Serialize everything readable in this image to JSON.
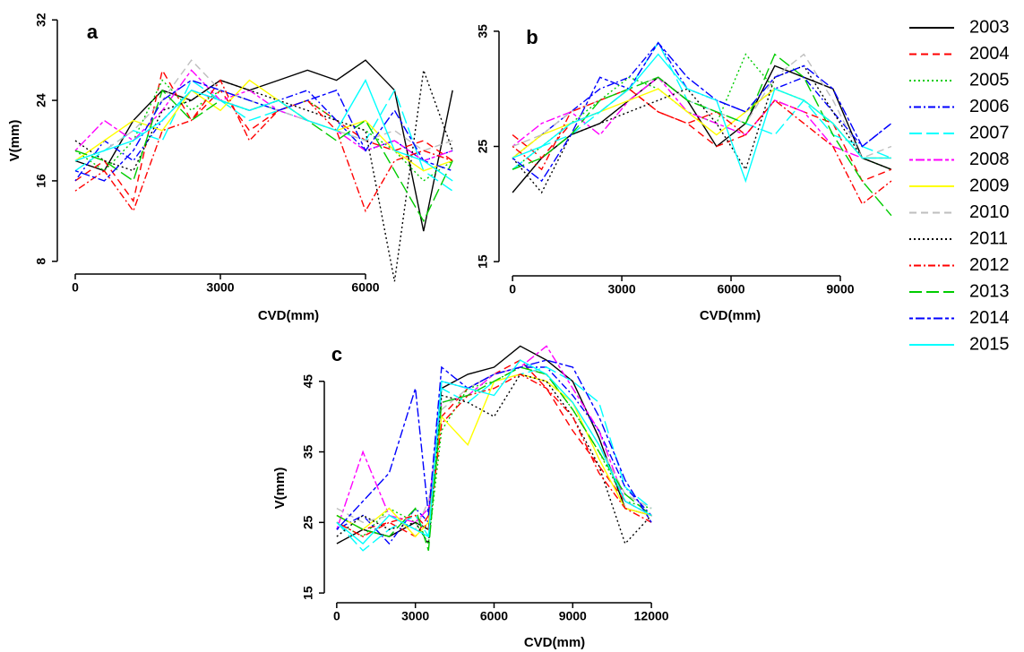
{
  "legend": [
    {
      "name": "2003",
      "color": "#000000",
      "dash": "solid"
    },
    {
      "name": "2004",
      "color": "#ff0000",
      "dash": "dashed"
    },
    {
      "name": "2005",
      "color": "#00cc00",
      "dash": "dotted"
    },
    {
      "name": "2006",
      "color": "#0000ff",
      "dash": "dotdash"
    },
    {
      "name": "2007",
      "color": "#00ffff",
      "dash": "longdash"
    },
    {
      "name": "2008",
      "color": "#ff00ff",
      "dash": "twodash"
    },
    {
      "name": "2009",
      "color": "#ffff00",
      "dash": "solid"
    },
    {
      "name": "2010",
      "color": "#bebebe",
      "dash": "dashed"
    },
    {
      "name": "2011",
      "color": "#000000",
      "dash": "dotted"
    },
    {
      "name": "2012",
      "color": "#ff0000",
      "dash": "dotdash"
    },
    {
      "name": "2013",
      "color": "#00cc00",
      "dash": "longdash"
    },
    {
      "name": "2014",
      "color": "#0000ff",
      "dash": "twodash"
    },
    {
      "name": "2015",
      "color": "#00ffff",
      "dash": "solid"
    }
  ],
  "chart_data": [
    {
      "type": "line",
      "label": "a",
      "xlabel": "CVD(mm)",
      "ylabel": "V(mm)",
      "x": [
        0,
        600,
        1200,
        1800,
        2400,
        3000,
        3600,
        4200,
        4800,
        5400,
        6000,
        6600,
        7200,
        7800
      ],
      "xlim": [
        -100,
        7900
      ],
      "ylim": [
        7,
        33
      ],
      "xticks": [
        0,
        3000,
        6000
      ],
      "yticks": [
        8,
        16,
        24,
        32
      ],
      "series": [
        {
          "values": [
            18,
            17,
            22,
            25,
            24,
            26,
            25,
            26,
            27,
            26,
            28,
            25,
            11,
            25
          ]
        },
        {
          "values": [
            16,
            18,
            14,
            27,
            22,
            25,
            21,
            23,
            24,
            22,
            20,
            19,
            20,
            18
          ]
        },
        {
          "values": [
            19,
            17,
            20,
            26,
            23,
            25,
            24,
            23,
            24,
            22,
            21,
            19,
            16,
            18
          ]
        },
        {
          "values": [
            16,
            20,
            18,
            22,
            25,
            24,
            23,
            24,
            25,
            22,
            19,
            20,
            18,
            19
          ]
        },
        {
          "values": [
            17,
            19,
            21,
            20,
            26,
            24,
            22,
            23,
            22,
            21,
            20,
            25,
            17,
            15
          ]
        },
        {
          "values": [
            19,
            22,
            20,
            23,
            27,
            24,
            25,
            23,
            22,
            21,
            19,
            20,
            18,
            19
          ]
        },
        {
          "values": [
            18,
            20,
            22,
            21,
            25,
            23,
            26,
            24,
            22,
            21,
            22,
            19,
            17,
            18
          ]
        },
        {
          "values": [
            18,
            19,
            21,
            24,
            28,
            25,
            24,
            23,
            22,
            21,
            20,
            21,
            19,
            20
          ]
        },
        {
          "values": [
            20,
            18,
            17,
            23,
            24,
            26,
            25,
            24,
            23,
            22,
            21,
            6,
            27,
            19
          ]
        },
        {
          "values": [
            15,
            17,
            13,
            21,
            22,
            26,
            20,
            23,
            24,
            21,
            13,
            18,
            19,
            18
          ]
        },
        {
          "values": [
            19,
            18,
            16,
            25,
            22,
            24,
            23,
            24,
            22,
            20,
            22,
            17,
            12,
            18
          ]
        },
        {
          "values": [
            17,
            16,
            19,
            24,
            26,
            25,
            24,
            23,
            24,
            25,
            19,
            23,
            18,
            17
          ]
        },
        {
          "values": [
            18,
            19,
            20,
            22,
            25,
            24,
            23,
            24,
            22,
            21,
            26,
            19,
            18,
            16
          ]
        }
      ]
    },
    {
      "type": "line",
      "label": "b",
      "xlabel": "CVD(mm)",
      "x": [
        0,
        800,
        1600,
        2400,
        3200,
        4000,
        4800,
        5600,
        6400,
        7200,
        8000,
        8800,
        9600,
        10400
      ],
      "xlim": [
        -200,
        10600
      ],
      "ylim": [
        14,
        36
      ],
      "xticks": [
        0,
        3000,
        6000,
        9000
      ],
      "yticks": [
        15,
        25,
        35
      ],
      "series": [
        {
          "values": [
            21,
            24,
            26,
            27,
            29,
            31,
            29,
            25,
            27,
            32,
            31,
            30,
            24,
            23
          ]
        },
        {
          "values": [
            26,
            24,
            27,
            28,
            30,
            28,
            27,
            25,
            26,
            29,
            28,
            27,
            22,
            23
          ]
        },
        {
          "values": [
            23,
            25,
            27,
            29,
            31,
            30,
            28,
            27,
            33,
            30,
            29,
            27,
            24,
            23
          ]
        },
        {
          "values": [
            24,
            26,
            28,
            30,
            31,
            34,
            30,
            29,
            28,
            30,
            31,
            28,
            25,
            27
          ]
        },
        {
          "values": [
            23,
            25,
            26,
            28,
            30,
            34,
            29,
            28,
            27,
            26,
            29,
            26,
            25,
            24
          ]
        },
        {
          "values": [
            25,
            27,
            28,
            26,
            29,
            31,
            28,
            27,
            26,
            29,
            28,
            25,
            24,
            24
          ]
        },
        {
          "values": [
            24,
            26,
            27,
            28,
            29,
            30,
            28,
            26,
            28,
            30,
            29,
            27,
            24,
            24
          ]
        },
        {
          "values": [
            25,
            26,
            28,
            29,
            30,
            31,
            29,
            28,
            27,
            31,
            33,
            29,
            24,
            25
          ]
        },
        {
          "values": [
            24,
            21,
            26,
            27,
            28,
            29,
            30,
            27,
            23,
            31,
            32,
            28,
            24,
            23
          ]
        },
        {
          "values": [
            25,
            23,
            28,
            29,
            30,
            28,
            27,
            28,
            26,
            29,
            27,
            25,
            20,
            22
          ]
        },
        {
          "values": [
            23,
            24,
            26,
            29,
            30,
            31,
            29,
            28,
            27,
            33,
            31,
            26,
            22,
            19
          ]
        },
        {
          "values": [
            24,
            22,
            26,
            31,
            30,
            34,
            31,
            29,
            28,
            31,
            32,
            30,
            25,
            27
          ]
        },
        {
          "values": [
            24,
            25,
            27,
            28,
            30,
            33,
            30,
            29,
            22,
            30,
            29,
            27,
            24,
            24
          ]
        }
      ]
    },
    {
      "type": "line",
      "label": "c",
      "xlabel": "CVD(mm)",
      "ylabel": "V(mm)",
      "x": [
        0,
        1000,
        2000,
        3000,
        3500,
        4000,
        5000,
        6000,
        7000,
        8000,
        9000,
        10000,
        11000,
        12000
      ],
      "xlim": [
        -200,
        13500
      ],
      "ylim": [
        14,
        47
      ],
      "xticks": [
        0,
        3000,
        6000,
        9000,
        12000
      ],
      "yticks": [
        15,
        25,
        35,
        45
      ],
      "series": [
        {
          "values": [
            22,
            24,
            23,
            25,
            24,
            44,
            46,
            47,
            50,
            48,
            45,
            37,
            27,
            26
          ]
        },
        {
          "values": [
            26,
            24,
            25,
            23,
            26,
            40,
            44,
            46,
            48,
            44,
            38,
            33,
            28,
            26
          ]
        },
        {
          "values": [
            25,
            23,
            27,
            25,
            22,
            38,
            44,
            45,
            47,
            46,
            41,
            35,
            28,
            27
          ]
        },
        {
          "values": [
            24,
            26,
            22,
            27,
            25,
            45,
            44,
            46,
            47,
            47,
            43,
            38,
            30,
            26
          ]
        },
        {
          "values": [
            25,
            21,
            24,
            26,
            23,
            44,
            42,
            45,
            46,
            47,
            45,
            42,
            30,
            27
          ]
        },
        {
          "values": [
            24,
            35,
            26,
            25,
            27,
            42,
            43,
            46,
            47,
            50,
            44,
            38,
            28,
            26
          ]
        },
        {
          "values": [
            26,
            24,
            27,
            23,
            25,
            40,
            36,
            45,
            46,
            45,
            42,
            34,
            27,
            26
          ]
        },
        {
          "values": [
            27,
            25,
            26,
            24,
            28,
            41,
            44,
            46,
            47,
            46,
            42,
            36,
            29,
            27
          ]
        },
        {
          "values": [
            23,
            26,
            24,
            25,
            22,
            43,
            42,
            40,
            46,
            45,
            40,
            33,
            22,
            26
          ]
        },
        {
          "values": [
            25,
            23,
            25,
            26,
            24,
            39,
            43,
            44,
            46,
            44,
            40,
            32,
            27,
            25
          ]
        },
        {
          "values": [
            26,
            24,
            23,
            27,
            21,
            42,
            43,
            45,
            47,
            46,
            41,
            35,
            29,
            26
          ]
        },
        {
          "values": [
            24,
            28,
            32,
            44,
            26,
            47,
            44,
            46,
            47,
            48,
            47,
            40,
            31,
            25
          ]
        },
        {
          "values": [
            25,
            22,
            26,
            24,
            23,
            45,
            44,
            43,
            48,
            46,
            42,
            36,
            28,
            26
          ]
        }
      ]
    }
  ]
}
